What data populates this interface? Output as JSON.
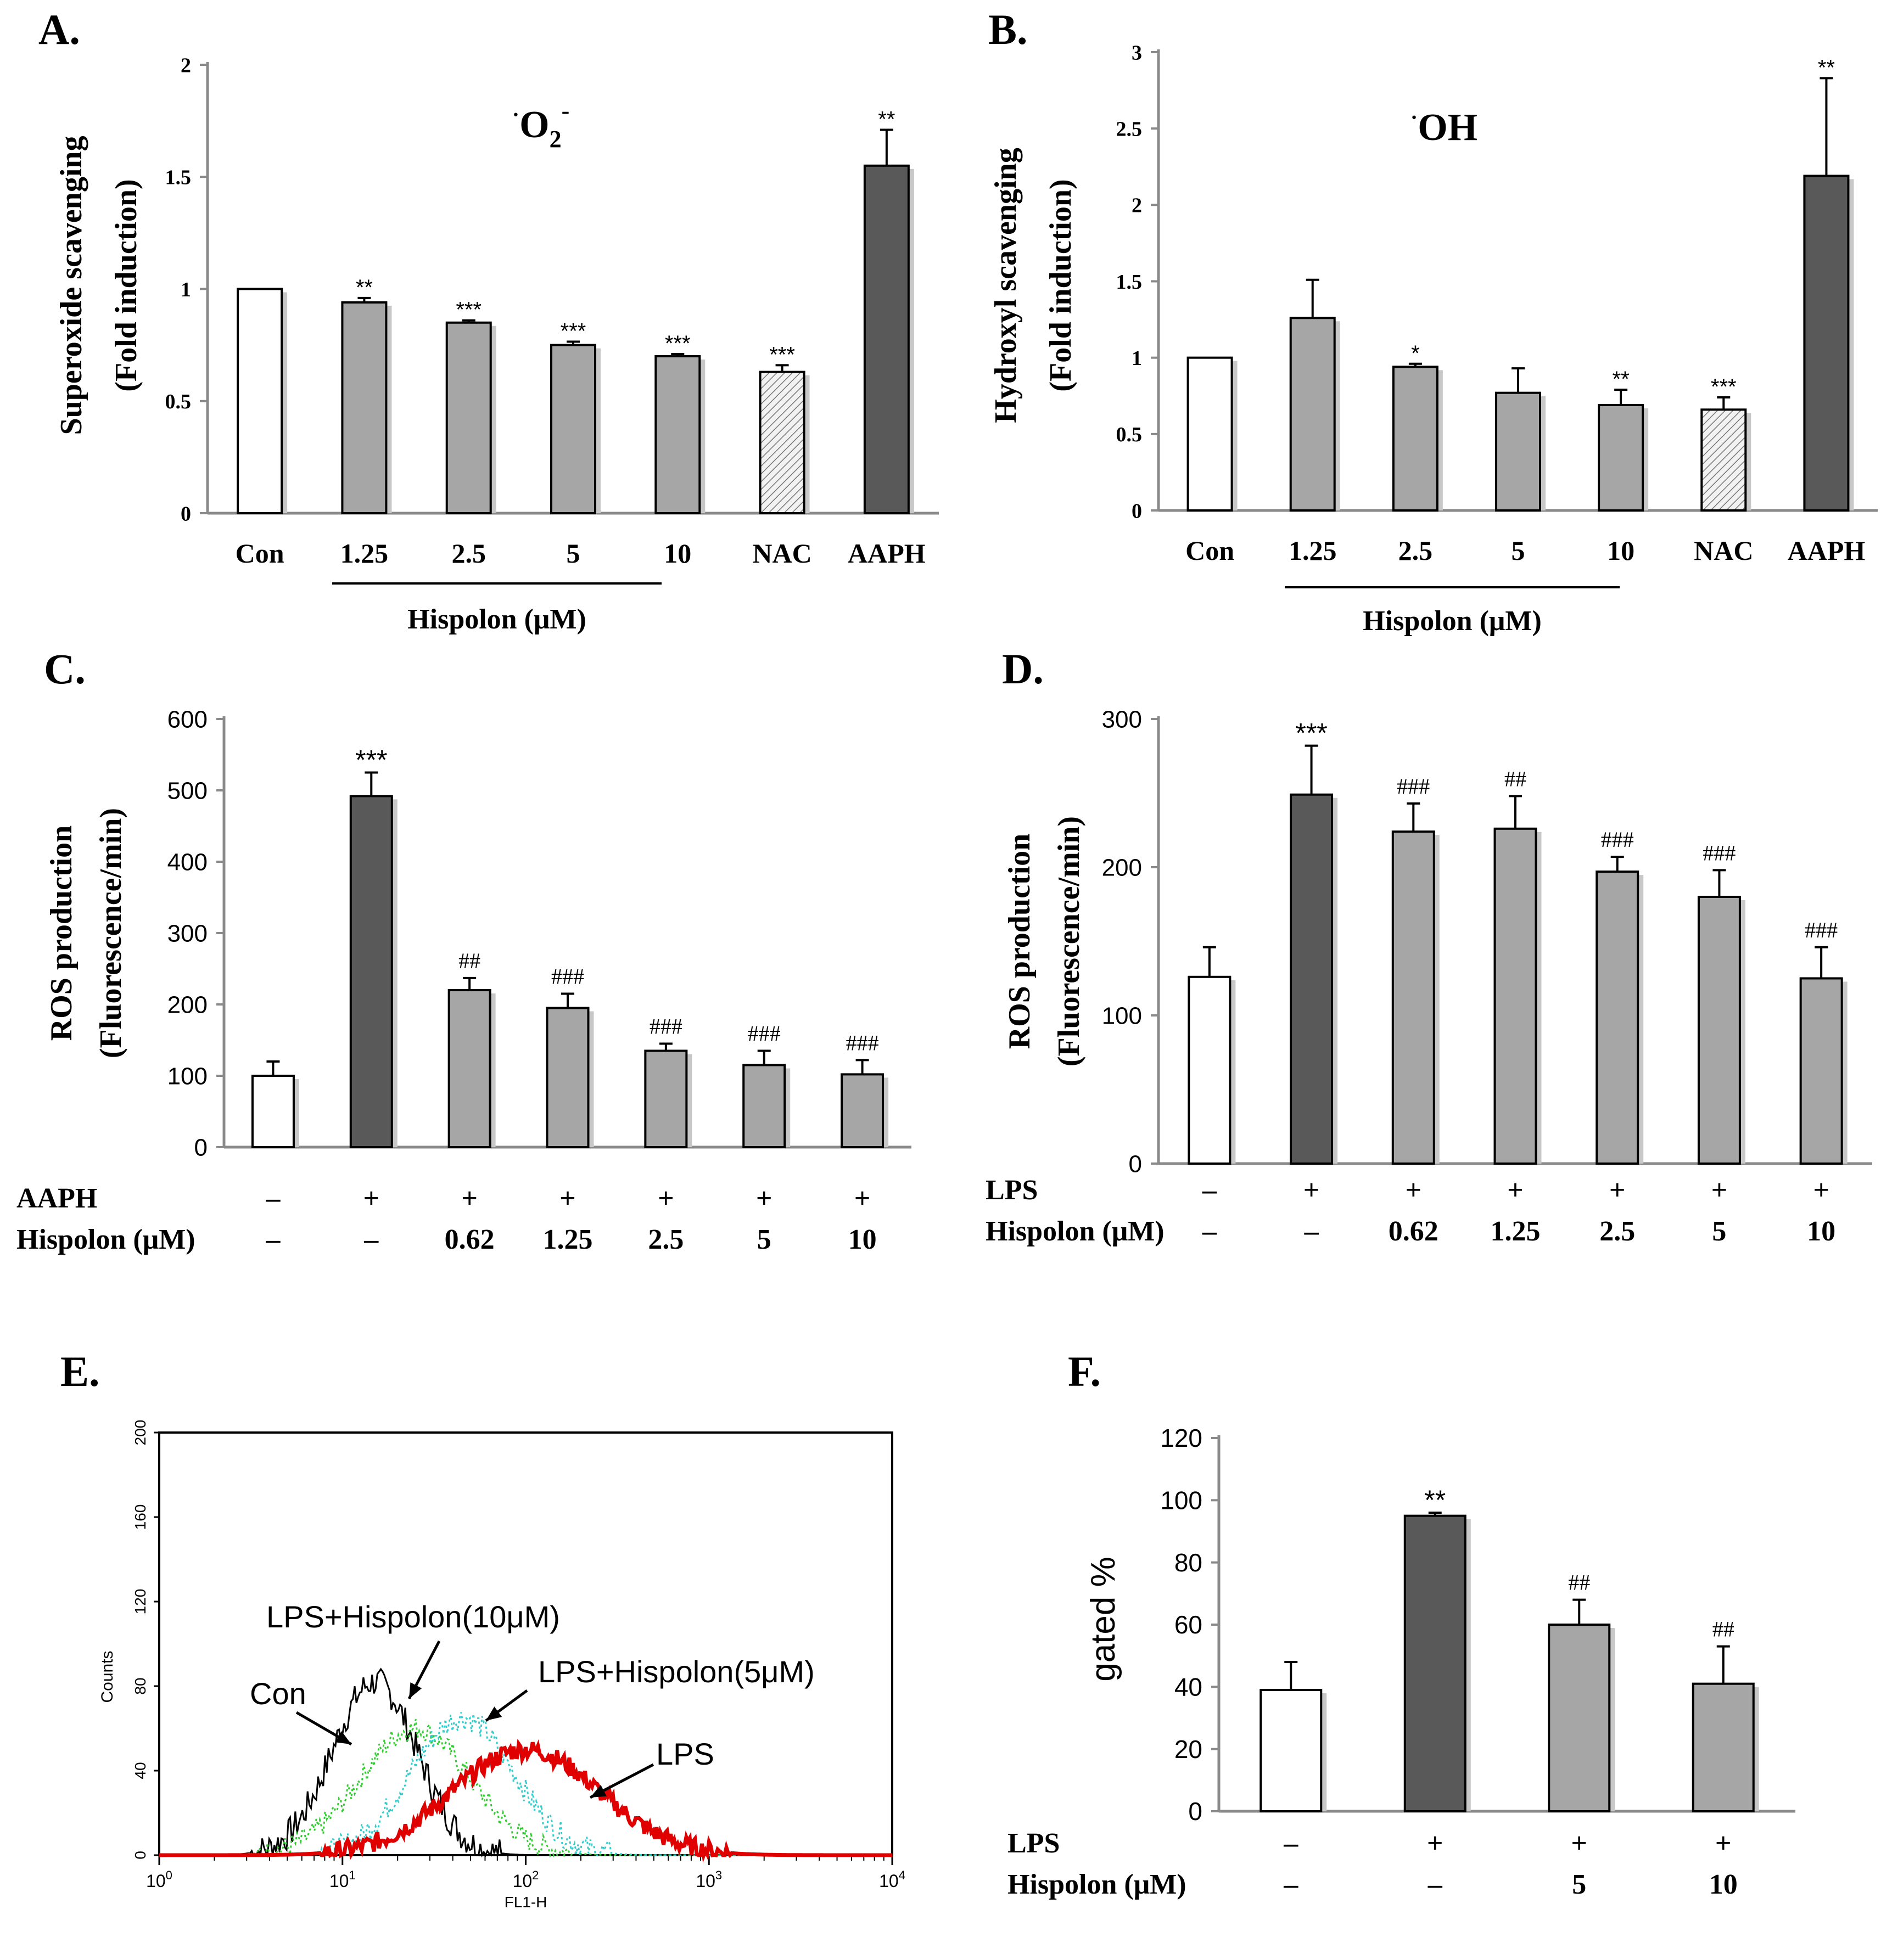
{
  "chart_data": [
    {
      "id": "A",
      "type": "bar",
      "panel_label": "A.",
      "annotation_title": "O2-",
      "ylabel_lines": [
        "Superoxide scavenging",
        "(Fold induction)"
      ],
      "ylim": [
        0,
        2
      ],
      "yticks": [
        "0",
        "0.5",
        "1",
        "1.5",
        "2"
      ],
      "ytick_values": [
        0,
        0.5,
        1,
        1.5,
        2
      ],
      "categories": [
        "Con",
        "1.25",
        "2.5",
        "5",
        "10",
        "NAC",
        "AAPH"
      ],
      "values": [
        1.0,
        0.94,
        0.85,
        0.75,
        0.7,
        0.63,
        1.55
      ],
      "errors": [
        0,
        0.02,
        0.01,
        0.015,
        0.01,
        0.03,
        0.16
      ],
      "styles": [
        "white",
        "light",
        "light",
        "light",
        "light",
        "hatch",
        "dark"
      ],
      "significance": [
        "",
        "**",
        "***",
        "***",
        "***",
        "***",
        "**"
      ],
      "group_label": "Hispolon (μM)"
    },
    {
      "id": "B",
      "type": "bar",
      "panel_label": "B.",
      "annotation_title": "OH",
      "ylabel_lines": [
        "Hydroxyl scavenging",
        "(Fold induction)"
      ],
      "ylim": [
        0,
        3
      ],
      "yticks": [
        "0",
        "0.5",
        "1",
        "1.5",
        "2",
        "2.5",
        "3"
      ],
      "ytick_values": [
        0,
        0.5,
        1,
        1.5,
        2,
        2.5,
        3
      ],
      "categories": [
        "Con",
        "1.25",
        "2.5",
        "5",
        "10",
        "NAC",
        "AAPH"
      ],
      "values": [
        1.0,
        1.26,
        0.94,
        0.77,
        0.69,
        0.66,
        2.19
      ],
      "errors": [
        0,
        0.25,
        0.02,
        0.16,
        0.1,
        0.08,
        0.64
      ],
      "styles": [
        "white",
        "light",
        "light",
        "light",
        "light",
        "hatch",
        "dark"
      ],
      "significance": [
        "",
        "",
        "*",
        "",
        "**",
        "***",
        "**"
      ],
      "group_label": "Hispolon (μM)"
    },
    {
      "id": "C",
      "type": "bar",
      "panel_label": "C.",
      "ylabel_lines": [
        "ROS production",
        "(Fluorescence/min)"
      ],
      "ylim": [
        0,
        600
      ],
      "yticks": [
        "0",
        "100",
        "200",
        "300",
        "400",
        "500",
        "600"
      ],
      "ytick_values": [
        0,
        100,
        200,
        300,
        400,
        500,
        600
      ],
      "values": [
        100,
        492,
        220,
        195,
        135,
        115,
        102
      ],
      "errors": [
        20,
        33,
        17,
        20,
        10,
        20,
        20
      ],
      "styles": [
        "white",
        "dark",
        "light",
        "light",
        "light",
        "light",
        "light"
      ],
      "significance": [
        "",
        "***",
        "##",
        "###",
        "###",
        "###",
        "###"
      ],
      "row_labels": [
        "AAPH",
        "Hispolon (μM)"
      ],
      "row1": [
        "–",
        "+",
        "+",
        "+",
        "+",
        "+",
        "+"
      ],
      "row2": [
        "–",
        "–",
        "0.62",
        "1.25",
        "2.5",
        "5",
        "10"
      ]
    },
    {
      "id": "D",
      "type": "bar",
      "panel_label": "D.",
      "ylabel_lines": [
        "ROS production",
        "(Fluorescence/min)"
      ],
      "ylim": [
        0,
        300
      ],
      "yticks": [
        "0",
        "100",
        "200",
        "300"
      ],
      "ytick_values": [
        0,
        100,
        200,
        300
      ],
      "values": [
        126,
        249,
        224,
        226,
        197,
        180,
        125
      ],
      "errors": [
        20,
        33,
        19,
        22,
        10,
        18,
        21
      ],
      "styles": [
        "white",
        "dark",
        "light",
        "light",
        "light",
        "light",
        "light"
      ],
      "significance": [
        "",
        "***",
        "###",
        "##",
        "###",
        "###",
        "###"
      ],
      "row_labels": [
        "LPS",
        "Hispolon (μM)"
      ],
      "row1": [
        "–",
        "+",
        "+",
        "+",
        "+",
        "+",
        "+"
      ],
      "row2": [
        "–",
        "–",
        "0.62",
        "1.25",
        "2.5",
        "5",
        "10"
      ]
    },
    {
      "id": "E",
      "type": "line",
      "panel_label": "E.",
      "xlabel": "FL1-H",
      "ylabel": "Counts",
      "xscale": "log",
      "xlim": [
        1,
        10000
      ],
      "ylim": [
        0,
        200
      ],
      "yticks": [
        "0",
        "40",
        "80",
        "120",
        "160",
        "200"
      ],
      "ytick_values": [
        0,
        40,
        80,
        120,
        160,
        200
      ],
      "xtick_labels": [
        "10",
        "10",
        "10",
        "10",
        "10"
      ],
      "xtick_exps": [
        "0",
        "1",
        "2",
        "3",
        "4"
      ],
      "xtick_values": [
        1,
        10,
        100,
        1000,
        10000
      ],
      "series": [
        {
          "name": "Con",
          "color": "#000000",
          "style": "solid",
          "peak_x": 15,
          "peak_y": 82,
          "width": 0.23
        },
        {
          "name": "LPS+Hispolon(10μM)",
          "color": "#33cc33",
          "style": "dotted",
          "peak_x": 25,
          "peak_y": 60,
          "width": 0.3
        },
        {
          "name": "LPS+Hispolon(5μM)",
          "color": "#33cccc",
          "style": "dotted",
          "peak_x": 45,
          "peak_y": 65,
          "width": 0.28
        },
        {
          "name": "LPS",
          "color": "#e00000",
          "style": "solid",
          "peak_x": 100,
          "peak_y": 50,
          "width": 0.4
        }
      ],
      "annotations": [
        "Con",
        "LPS+Hispolon(10μM)",
        "LPS+Hispolon(5μM)",
        "LPS"
      ]
    },
    {
      "id": "F",
      "type": "bar",
      "panel_label": "F.",
      "ylabel": "gated %",
      "ylim": [
        0,
        120
      ],
      "yticks": [
        "0",
        "20",
        "40",
        "60",
        "80",
        "100",
        "120"
      ],
      "ytick_values": [
        0,
        20,
        40,
        60,
        80,
        100,
        120
      ],
      "values": [
        39,
        95,
        60,
        41
      ],
      "errors": [
        9,
        1,
        8,
        12
      ],
      "styles": [
        "white",
        "dark",
        "light",
        "light"
      ],
      "significance": [
        "",
        "**",
        "##",
        "##"
      ],
      "row_labels": [
        "LPS",
        "Hispolon (μM)"
      ],
      "row1": [
        "–",
        "+",
        "+",
        "+"
      ],
      "row2": [
        "–",
        "–",
        "5",
        "10"
      ]
    }
  ]
}
